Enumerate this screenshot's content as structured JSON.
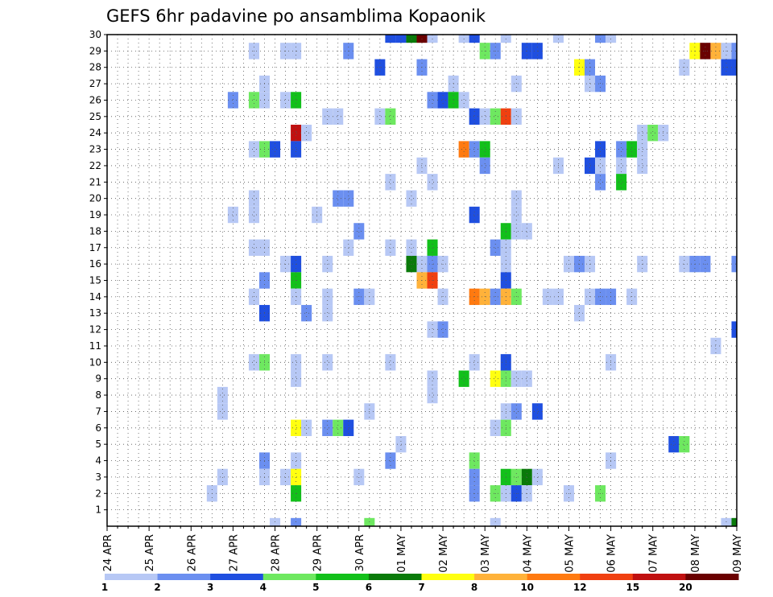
{
  "chart_data": {
    "type": "heatmap",
    "title": "GEFS 6hr padavine po ansamblima Kopaonik",
    "xlabel": "",
    "ylabel": "",
    "x_tick_labels": [
      "24 APR",
      "25 APR",
      "26 APR",
      "27 APR",
      "28 APR",
      "29 APR",
      "30 APR",
      "01 MAY",
      "02 MAY",
      "03 MAY",
      "04 MAY",
      "05 MAY",
      "06 MAY",
      "07 MAY",
      "08 MAY",
      "09 MAY"
    ],
    "x_range_steps": [
      0,
      60
    ],
    "steps_per_day": 4,
    "y_range": [
      0,
      30
    ],
    "y_ticks": [
      1,
      2,
      3,
      4,
      5,
      6,
      7,
      8,
      9,
      10,
      11,
      12,
      13,
      14,
      15,
      16,
      17,
      18,
      19,
      20,
      21,
      22,
      23,
      24,
      25,
      26,
      27,
      28,
      29,
      30
    ],
    "grid": true,
    "legend_position": "bottom",
    "levels": [
      {
        "from": "1",
        "to": "2",
        "color": "#b7c8f5"
      },
      {
        "from": "2",
        "to": "3",
        "color": "#6b8ff0"
      },
      {
        "from": "3",
        "to": "4",
        "color": "#1f4fe0"
      },
      {
        "from": "4",
        "to": "5",
        "color": "#6ee860"
      },
      {
        "from": "5",
        "to": "6",
        "color": "#12c01a"
      },
      {
        "from": "6",
        "to": "7",
        "color": "#0a7a0a"
      },
      {
        "from": "7",
        "to": "8",
        "color": "#ffff10"
      },
      {
        "from": "8",
        "to": "10",
        "color": "#ffb23a"
      },
      {
        "from": "10",
        "to": "12",
        "color": "#ff7a10"
      },
      {
        "from": "12",
        "to": "15",
        "color": "#f04010"
      },
      {
        "from": "15",
        "to": "20",
        "color": "#c01010"
      },
      {
        "from": "20",
        "to": "",
        "color": "#6a0000"
      }
    ],
    "legend_labels": [
      "1",
      "2",
      "3",
      "4",
      "5",
      "6",
      "7",
      "8",
      "10",
      "12",
      "15",
      "20"
    ],
    "cells_format": "[member, time_step, level_index]",
    "cells": [
      [
        30,
        27,
        2
      ],
      [
        30,
        28,
        2
      ],
      [
        30,
        29,
        5
      ],
      [
        30,
        30,
        11
      ],
      [
        30,
        31,
        0
      ],
      [
        30,
        34,
        0
      ],
      [
        30,
        35,
        2
      ],
      [
        30,
        38,
        0
      ],
      [
        30,
        43,
        0
      ],
      [
        30,
        47,
        1
      ],
      [
        30,
        48,
        0
      ],
      [
        29,
        14,
        0
      ],
      [
        29,
        17,
        0
      ],
      [
        29,
        18,
        0
      ],
      [
        29,
        23,
        1
      ],
      [
        29,
        36,
        3
      ],
      [
        29,
        37,
        1
      ],
      [
        29,
        40,
        2
      ],
      [
        29,
        41,
        2
      ],
      [
        29,
        56,
        6
      ],
      [
        29,
        57,
        11
      ],
      [
        29,
        58,
        7
      ],
      [
        29,
        59,
        0
      ],
      [
        29,
        60,
        1
      ],
      [
        28,
        26,
        2
      ],
      [
        28,
        30,
        1
      ],
      [
        28,
        45,
        6
      ],
      [
        28,
        46,
        1
      ],
      [
        28,
        55,
        0
      ],
      [
        28,
        59,
        2
      ],
      [
        28,
        60,
        2
      ],
      [
        27,
        15,
        0
      ],
      [
        27,
        33,
        0
      ],
      [
        27,
        39,
        0
      ],
      [
        27,
        46,
        0
      ],
      [
        27,
        47,
        1
      ],
      [
        26,
        12,
        1
      ],
      [
        26,
        14,
        3
      ],
      [
        26,
        15,
        0
      ],
      [
        26,
        17,
        0
      ],
      [
        26,
        18,
        4
      ],
      [
        26,
        31,
        1
      ],
      [
        26,
        32,
        2
      ],
      [
        26,
        33,
        4
      ],
      [
        26,
        34,
        0
      ],
      [
        25,
        21,
        0
      ],
      [
        25,
        22,
        0
      ],
      [
        25,
        26,
        0
      ],
      [
        25,
        27,
        3
      ],
      [
        25,
        35,
        2
      ],
      [
        25,
        36,
        0
      ],
      [
        25,
        37,
        3
      ],
      [
        25,
        38,
        9
      ],
      [
        25,
        39,
        0
      ],
      [
        24,
        18,
        10
      ],
      [
        24,
        19,
        0
      ],
      [
        24,
        51,
        0
      ],
      [
        24,
        52,
        3
      ],
      [
        24,
        53,
        0
      ],
      [
        23,
        14,
        0
      ],
      [
        23,
        15,
        3
      ],
      [
        23,
        16,
        2
      ],
      [
        23,
        18,
        2
      ],
      [
        23,
        34,
        8
      ],
      [
        23,
        35,
        1
      ],
      [
        23,
        36,
        4
      ],
      [
        23,
        47,
        2
      ],
      [
        23,
        49,
        1
      ],
      [
        23,
        50,
        4
      ],
      [
        23,
        51,
        0
      ],
      [
        22,
        30,
        0
      ],
      [
        22,
        36,
        1
      ],
      [
        22,
        43,
        0
      ],
      [
        22,
        46,
        2
      ],
      [
        22,
        47,
        0
      ],
      [
        22,
        49,
        0
      ],
      [
        22,
        51,
        0
      ],
      [
        21,
        27,
        0
      ],
      [
        21,
        31,
        0
      ],
      [
        21,
        47,
        1
      ],
      [
        21,
        49,
        4
      ],
      [
        20,
        14,
        0
      ],
      [
        20,
        22,
        1
      ],
      [
        20,
        23,
        1
      ],
      [
        20,
        29,
        0
      ],
      [
        20,
        39,
        0
      ],
      [
        19,
        12,
        0
      ],
      [
        19,
        14,
        0
      ],
      [
        19,
        20,
        0
      ],
      [
        19,
        35,
        2
      ],
      [
        19,
        39,
        0
      ],
      [
        18,
        24,
        1
      ],
      [
        18,
        38,
        4
      ],
      [
        18,
        39,
        0
      ],
      [
        18,
        40,
        0
      ],
      [
        17,
        14,
        0
      ],
      [
        17,
        15,
        0
      ],
      [
        17,
        23,
        0
      ],
      [
        17,
        27,
        0
      ],
      [
        17,
        29,
        0
      ],
      [
        17,
        31,
        4
      ],
      [
        17,
        37,
        1
      ],
      [
        17,
        38,
        0
      ],
      [
        16,
        17,
        0
      ],
      [
        16,
        18,
        2
      ],
      [
        16,
        21,
        0
      ],
      [
        16,
        29,
        5
      ],
      [
        16,
        30,
        0
      ],
      [
        16,
        31,
        1
      ],
      [
        16,
        32,
        0
      ],
      [
        16,
        38,
        0
      ],
      [
        16,
        44,
        0
      ],
      [
        16,
        45,
        1
      ],
      [
        16,
        46,
        0
      ],
      [
        16,
        51,
        0
      ],
      [
        16,
        55,
        0
      ],
      [
        16,
        56,
        1
      ],
      [
        16,
        57,
        1
      ],
      [
        16,
        60,
        1
      ],
      [
        15,
        15,
        1
      ],
      [
        15,
        18,
        4
      ],
      [
        15,
        30,
        7
      ],
      [
        15,
        31,
        9
      ],
      [
        15,
        38,
        2
      ],
      [
        14,
        14,
        0
      ],
      [
        14,
        18,
        0
      ],
      [
        14,
        21,
        0
      ],
      [
        14,
        24,
        1
      ],
      [
        14,
        25,
        0
      ],
      [
        14,
        32,
        0
      ],
      [
        14,
        35,
        8
      ],
      [
        14,
        36,
        7
      ],
      [
        14,
        37,
        1
      ],
      [
        14,
        38,
        7
      ],
      [
        14,
        39,
        3
      ],
      [
        14,
        42,
        0
      ],
      [
        14,
        43,
        0
      ],
      [
        14,
        46,
        0
      ],
      [
        14,
        47,
        1
      ],
      [
        14,
        48,
        1
      ],
      [
        14,
        50,
        0
      ],
      [
        13,
        15,
        2
      ],
      [
        13,
        19,
        1
      ],
      [
        13,
        21,
        0
      ],
      [
        13,
        45,
        0
      ],
      [
        12,
        31,
        0
      ],
      [
        12,
        32,
        1
      ],
      [
        12,
        60,
        2
      ],
      [
        11,
        58,
        0
      ],
      [
        10,
        14,
        0
      ],
      [
        10,
        15,
        3
      ],
      [
        10,
        18,
        0
      ],
      [
        10,
        21,
        0
      ],
      [
        10,
        27,
        0
      ],
      [
        10,
        35,
        0
      ],
      [
        10,
        38,
        2
      ],
      [
        10,
        48,
        0
      ],
      [
        9,
        18,
        0
      ],
      [
        9,
        31,
        0
      ],
      [
        9,
        34,
        4
      ],
      [
        9,
        37,
        6
      ],
      [
        9,
        38,
        3
      ],
      [
        9,
        39,
        0
      ],
      [
        9,
        40,
        0
      ],
      [
        8,
        11,
        0
      ],
      [
        8,
        31,
        0
      ],
      [
        7,
        11,
        0
      ],
      [
        7,
        25,
        0
      ],
      [
        7,
        38,
        0
      ],
      [
        7,
        39,
        1
      ],
      [
        7,
        41,
        2
      ],
      [
        6,
        18,
        6
      ],
      [
        6,
        19,
        0
      ],
      [
        6,
        21,
        1
      ],
      [
        6,
        22,
        3
      ],
      [
        6,
        23,
        2
      ],
      [
        6,
        37,
        0
      ],
      [
        6,
        38,
        3
      ],
      [
        5,
        28,
        0
      ],
      [
        5,
        54,
        2
      ],
      [
        5,
        55,
        3
      ],
      [
        4,
        15,
        1
      ],
      [
        4,
        18,
        0
      ],
      [
        4,
        27,
        1
      ],
      [
        4,
        35,
        3
      ],
      [
        4,
        48,
        0
      ],
      [
        3,
        11,
        0
      ],
      [
        3,
        15,
        0
      ],
      [
        3,
        17,
        0
      ],
      [
        3,
        18,
        6
      ],
      [
        3,
        24,
        0
      ],
      [
        3,
        35,
        1
      ],
      [
        3,
        38,
        4
      ],
      [
        3,
        39,
        3
      ],
      [
        3,
        40,
        5
      ],
      [
        3,
        41,
        0
      ],
      [
        2,
        10,
        0
      ],
      [
        2,
        18,
        4
      ],
      [
        2,
        35,
        1
      ],
      [
        2,
        37,
        3
      ],
      [
        2,
        38,
        0
      ],
      [
        2,
        39,
        2
      ],
      [
        2,
        40,
        0
      ],
      [
        2,
        44,
        0
      ],
      [
        2,
        47,
        3
      ],
      [
        0,
        16,
        0
      ],
      [
        0,
        18,
        1
      ],
      [
        0,
        25,
        3
      ],
      [
        0,
        37,
        0
      ],
      [
        0,
        59,
        0
      ],
      [
        0,
        60,
        5
      ]
    ]
  }
}
